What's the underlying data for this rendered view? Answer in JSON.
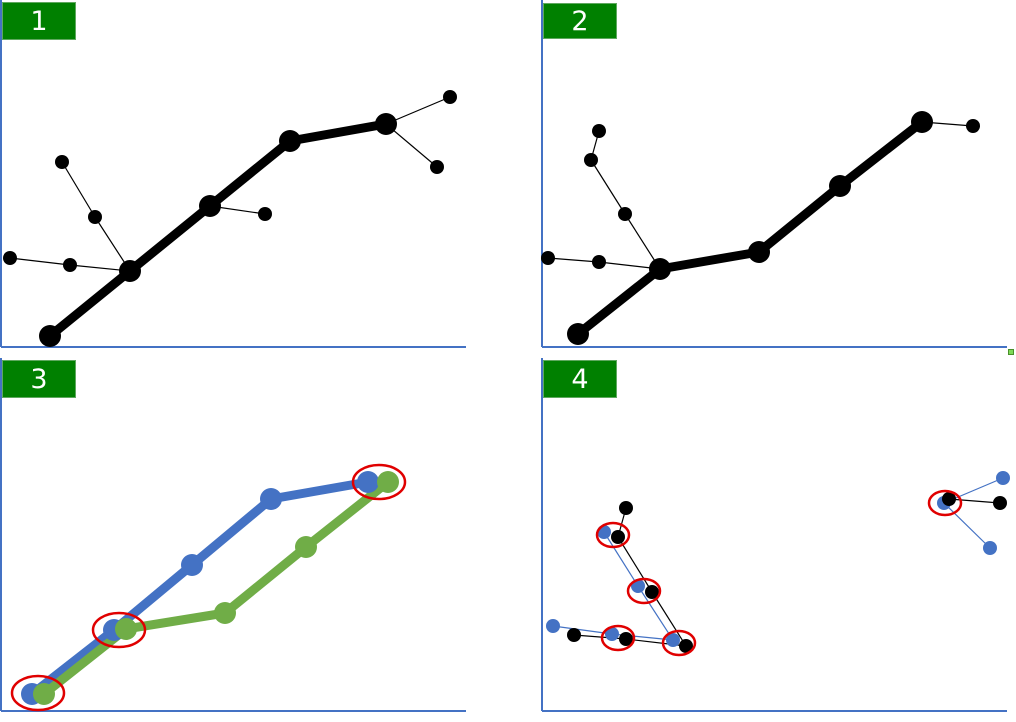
{
  "panels": [
    {
      "label": "1"
    },
    {
      "label": "2"
    },
    {
      "label": "3"
    },
    {
      "label": "4"
    }
  ],
  "colors": {
    "badge": "#008000",
    "axis": "#4472c4",
    "tree_black": "#000000",
    "tree_blue": "#4472c4",
    "tree_green": "#70ad47",
    "highlight_ring": "#e00000"
  }
}
